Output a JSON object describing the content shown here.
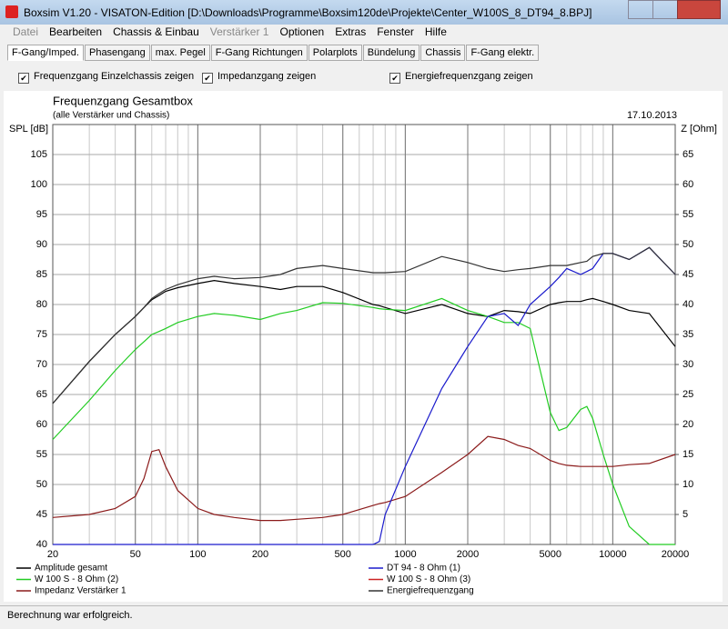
{
  "window": {
    "title": "Boxsim V1.20 - VISATON-Edition [D:\\Downloads\\Programme\\Boxsim120de\\Projekte\\Center_W100S_8_DT94_8.BPJ]"
  },
  "menu": [
    "Datei",
    "Bearbeiten",
    "Chassis & Einbau",
    "Verstärker 1",
    "Optionen",
    "Extras",
    "Fenster",
    "Hilfe"
  ],
  "tabs": [
    "F-Gang/Imped.",
    "Phasengang",
    "max. Pegel",
    "F-Gang Richtungen",
    "Polarplots",
    "Bündelung",
    "Chassis",
    "F-Gang elektr."
  ],
  "checkboxes": [
    "Frequenzgang Einzelchassis zeigen",
    "Impedanzgang zeigen",
    "Energiefrequenzgang zeigen"
  ],
  "status": "Berechnung war erfolgreich.",
  "chart_data": {
    "type": "line",
    "title": "Frequenzgang Gesamtbox",
    "subtitle": "(alle Verstärker und Chassis)",
    "date": "17.10.2013",
    "ylabel": "SPL [dB]",
    "y2label": "Z [Ohm]",
    "xscale": "log",
    "grid": true,
    "x": [
      20,
      30,
      40,
      50,
      55,
      60,
      65,
      70,
      80,
      100,
      120,
      150,
      200,
      250,
      300,
      400,
      500,
      700,
      750,
      800,
      1000,
      1500,
      2000,
      2500,
      3000,
      3500,
      4000,
      5000,
      5500,
      6000,
      7000,
      7500,
      8000,
      9000,
      10000,
      12000,
      15000,
      20000
    ],
    "xlim": [
      20,
      20000
    ],
    "xticks": [
      20,
      50,
      100,
      200,
      500,
      1000,
      2000,
      5000,
      10000,
      20000
    ],
    "ylim": [
      40,
      110
    ],
    "yticks": [
      40,
      45,
      50,
      55,
      60,
      65,
      70,
      75,
      80,
      85,
      90,
      95,
      100,
      105
    ],
    "y2lim": [
      0,
      70
    ],
    "y2ticks": [
      5,
      10,
      15,
      20,
      25,
      30,
      35,
      40,
      45,
      50,
      55,
      60,
      65
    ],
    "series": [
      {
        "name": "Amplitude gesamt",
        "color": "#000000",
        "values": [
          63.5,
          70.5,
          75,
          78,
          79.5,
          80.8,
          81.5,
          82.2,
          82.8,
          83.5,
          84,
          83.5,
          83,
          82.5,
          83,
          83,
          82,
          80,
          79.8,
          79.5,
          78.5,
          80,
          78.5,
          78,
          79,
          78.8,
          78.5,
          80,
          80.3,
          80.5,
          80.5,
          80.8,
          81,
          80.5,
          80,
          79,
          78.5,
          73
        ]
      },
      {
        "name": "W 100 S - 8 Ohm (2)",
        "color": "#22cc22",
        "values": [
          57.5,
          64,
          69,
          72.5,
          73.8,
          75,
          75.5,
          76,
          77,
          78,
          78.5,
          78.2,
          77.5,
          78.5,
          79,
          80.3,
          80.2,
          79.5,
          79.3,
          79.2,
          79,
          81,
          79,
          78,
          77,
          77,
          76,
          62,
          59,
          59.5,
          62.5,
          63,
          61,
          55,
          50,
          43,
          40,
          40
        ]
      },
      {
        "name": "Impedanz Verstärker 1",
        "color": "#8b1a1a",
        "axis": "y2",
        "values": [
          4.5,
          5,
          6,
          8,
          11,
          15.5,
          15.8,
          13,
          9,
          6,
          5,
          4.5,
          4,
          4,
          4.2,
          4.5,
          5,
          6.5,
          6.8,
          7,
          8,
          12,
          15,
          18,
          17.5,
          16.5,
          16,
          14,
          13.5,
          13.2,
          13,
          13,
          13,
          13,
          13,
          13.3,
          13.5,
          15
        ]
      },
      {
        "name": "DT 94 - 8 Ohm (1)",
        "color": "#1a1acc",
        "values": [
          40,
          40,
          40,
          40,
          40,
          40,
          40,
          40,
          40,
          40,
          40,
          40,
          40,
          40,
          40,
          40,
          40,
          40,
          40.5,
          45,
          53,
          66,
          73,
          78,
          78.5,
          76.5,
          80,
          83,
          84.5,
          86,
          85,
          85.5,
          86,
          88.5,
          88.5,
          87.5,
          89.5,
          85
        ]
      },
      {
        "name": "W 100 S - 8 Ohm (3)",
        "color": "#cc2222",
        "values": [
          null,
          null,
          null,
          null,
          null,
          null,
          null,
          null,
          null,
          null,
          null,
          null,
          null,
          null,
          null,
          null,
          null,
          null,
          null,
          null,
          null,
          null,
          null,
          null,
          null,
          null,
          null,
          null,
          null,
          null,
          null,
          null,
          null,
          null,
          null,
          null,
          null,
          null
        ]
      },
      {
        "name": "Energiefrequenzgang",
        "color": "#333333",
        "values": [
          63.5,
          70.5,
          75,
          78,
          79.5,
          81,
          81.8,
          82.5,
          83.3,
          84.3,
          84.7,
          84.3,
          84.5,
          85,
          86,
          86.5,
          86,
          85.3,
          85.3,
          85.3,
          85.5,
          88,
          87,
          86,
          85.5,
          85.8,
          86,
          86.5,
          86.5,
          86.5,
          87,
          87.2,
          88,
          88.5,
          88.5,
          87.5,
          89.5,
          85
        ]
      }
    ]
  }
}
